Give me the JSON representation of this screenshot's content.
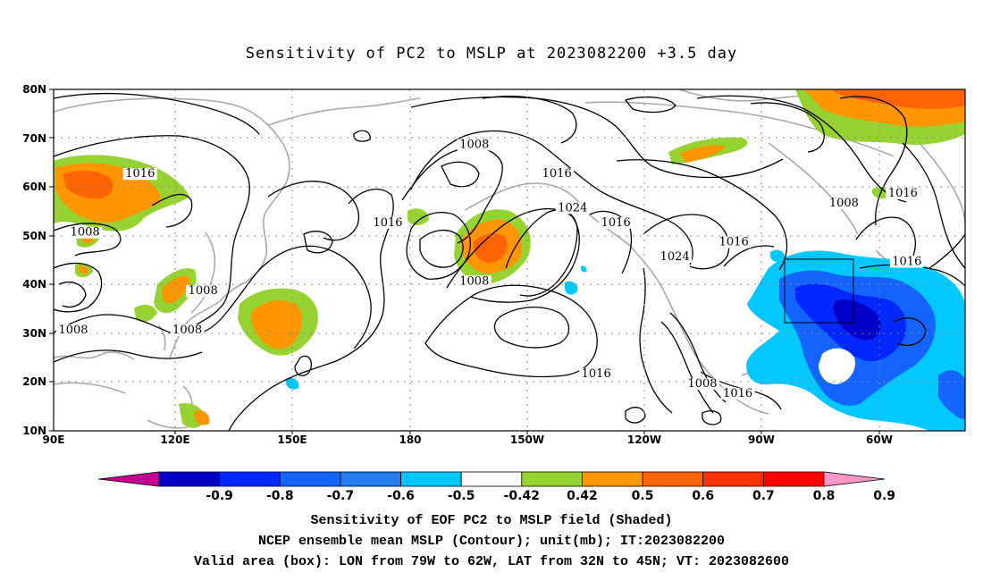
{
  "title": "Sensitivity of PC2 to MSLP at 2023082200 +3.5 day",
  "lat_labels": [
    "80N",
    "70N",
    "60N",
    "50N",
    "40N",
    "30N",
    "20N",
    "10N"
  ],
  "lon_labels": [
    "90E",
    "120E",
    "150E",
    "180",
    "150W",
    "120W",
    "90W",
    "60W"
  ],
  "contour_labels": [
    {
      "text": "1016",
      "lon": 112,
      "lat": 62
    },
    {
      "text": "1008",
      "lon": 98,
      "lat": 50
    },
    {
      "text": "1008",
      "lon": 128,
      "lat": 38
    },
    {
      "text": "1008",
      "lon": 124,
      "lat": 30
    },
    {
      "text": "1008",
      "lon": 95,
      "lat": 30
    },
    {
      "text": "1016",
      "lon": 175,
      "lat": 52
    },
    {
      "text": "1008",
      "lon": 197,
      "lat": 68
    },
    {
      "text": "1016",
      "lon": 218,
      "lat": 62
    },
    {
      "text": "1024",
      "lon": 222,
      "lat": 55
    },
    {
      "text": "1016",
      "lon": 233,
      "lat": 52
    },
    {
      "text": "1008",
      "lon": 197,
      "lat": 40
    },
    {
      "text": "1024",
      "lon": 248,
      "lat": 45
    },
    {
      "text": "1016",
      "lon": 263,
      "lat": 48
    },
    {
      "text": "1016",
      "lon": 228,
      "lat": 21
    },
    {
      "text": "1008",
      "lon": 255,
      "lat": 19
    },
    {
      "text": "1016",
      "lon": 264,
      "lat": 17
    },
    {
      "text": "1008",
      "lon": 291,
      "lat": 56
    },
    {
      "text": "1016",
      "lon": 306,
      "lat": 58
    },
    {
      "text": "1016",
      "lon": 307,
      "lat": 44
    }
  ],
  "colorbar": {
    "colors": [
      "#c00090",
      "#0000c8",
      "#0028ff",
      "#1464ff",
      "#287df0",
      "#00c8ff",
      "#ffffff",
      "#96d232",
      "#ff9600",
      "#ff6400",
      "#ff3200",
      "#ff0000",
      "#ff96c8"
    ],
    "tick_labels": [
      "-0.9",
      "-0.8",
      "-0.7",
      "-0.6",
      "-0.5",
      "-0.42",
      "0.42",
      "0.5",
      "0.6",
      "0.7",
      "0.8",
      "0.9"
    ]
  },
  "captions": [
    "Sensitivity of EOF PC2 to MSLP field (Shaded)",
    "NCEP ensemble mean MSLP (Contour); unit(mb); IT:2023082200",
    "Valid area (box): LON from 79W to 62W, LAT from 32N to 45N; VT: 2023082600"
  ]
}
